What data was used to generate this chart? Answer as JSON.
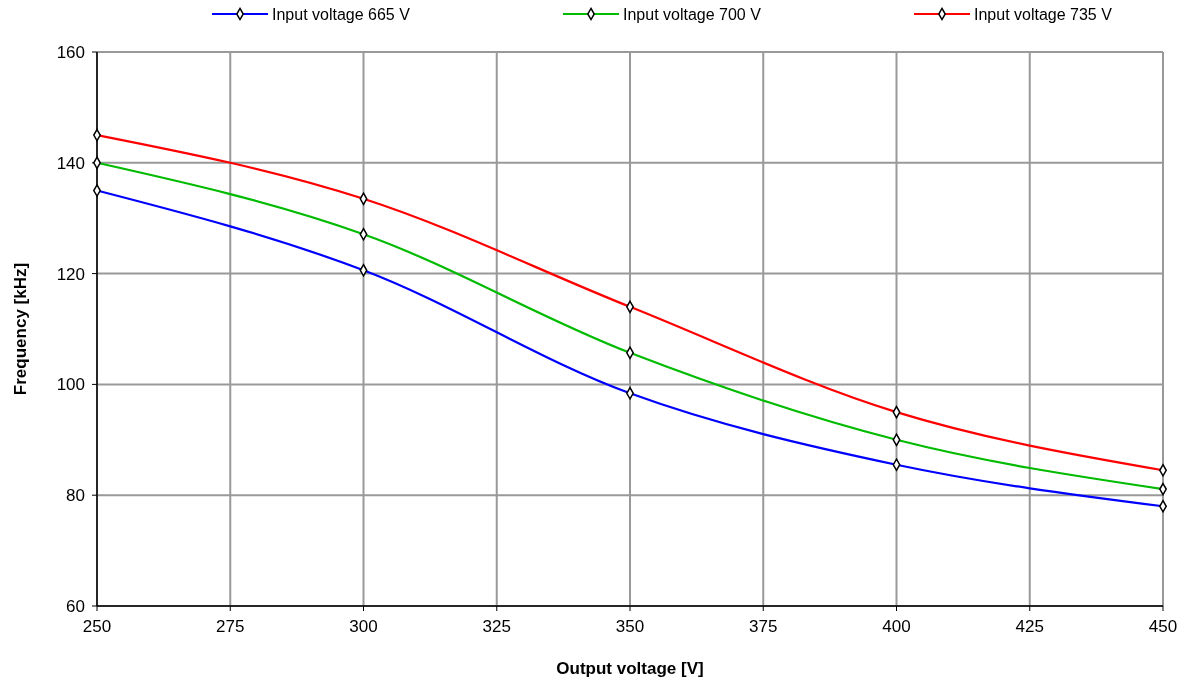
{
  "chart_data": {
    "type": "line",
    "xlabel": "Output voltage [V]",
    "ylabel": "Frequency [kHz]",
    "x": [
      250,
      300,
      350,
      400,
      450
    ],
    "series": [
      {
        "name": "Input voltage 665 V",
        "color": "#0000ff",
        "values": [
          135,
          120.6,
          98.4,
          85.5,
          78
        ]
      },
      {
        "name": "Input voltage 700 V",
        "color": "#00bb00",
        "values": [
          140,
          127.1,
          105.7,
          90,
          81.1
        ]
      },
      {
        "name": "Input voltage 735 V",
        "color": "#ff0000",
        "values": [
          145,
          133.5,
          114,
          95,
          84.5
        ]
      }
    ],
    "xlim": [
      250,
      450
    ],
    "xticks": [
      250,
      275,
      300,
      325,
      350,
      375,
      400,
      425,
      450
    ],
    "ylim": [
      60,
      160
    ],
    "yticks": [
      60,
      80,
      100,
      120,
      140,
      160
    ],
    "grid": true,
    "legend": "top",
    "marker": "diamond",
    "line_style": "solid"
  }
}
